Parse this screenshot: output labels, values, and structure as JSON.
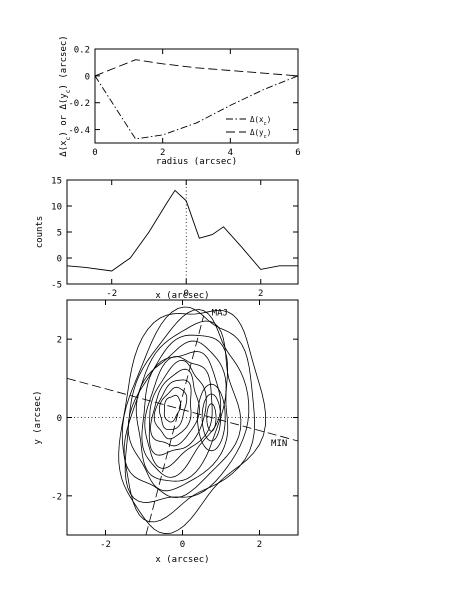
{
  "chart_data": [
    {
      "type": "line",
      "xlabel": "radius (arcsec)",
      "ylabel": "Δ(x_c) or Δ(y_c) (arcsec)",
      "ylabel_parts": [
        "Δ(x",
        "c",
        ") or Δ(y",
        "c",
        ") (arcsec)"
      ],
      "xlim": [
        0,
        6
      ],
      "ylim": [
        -0.5,
        0.2
      ],
      "xticks": [
        0,
        2,
        4,
        6
      ],
      "yticks": [
        -0.4,
        -0.2,
        0,
        0.2
      ],
      "x_tick_labels": [
        "0",
        "2",
        "4",
        "6"
      ],
      "y_tick_labels": [
        "-0.4",
        "-0.2",
        "0",
        "0.2"
      ],
      "legend_position": "lower-right",
      "series": [
        {
          "name": "Δ(x_c)",
          "name_parts": [
            "Δ(x",
            "c",
            ")"
          ],
          "dash": "dash-dot",
          "x": [
            0,
            1.2,
            2,
            3,
            4,
            5,
            6
          ],
          "y": [
            0,
            -0.47,
            -0.44,
            -0.35,
            -0.22,
            -0.1,
            0
          ]
        },
        {
          "name": "Δ(y_c)",
          "name_parts": [
            "Δ(y",
            "c",
            ")"
          ],
          "dash": "long-dash",
          "x": [
            0,
            1.2,
            2,
            3,
            4,
            5,
            6
          ],
          "y": [
            0,
            0.12,
            0.09,
            0.06,
            0.04,
            0.02,
            0
          ]
        }
      ]
    },
    {
      "type": "line",
      "xlabel": "x (arcsec)",
      "ylabel": "counts",
      "xlim": [
        -3.2,
        3
      ],
      "ylim": [
        -5,
        15
      ],
      "xticks": [
        -2,
        0,
        2
      ],
      "yticks": [
        -5,
        0,
        5,
        10,
        15
      ],
      "x_tick_labels": [
        "-2",
        "0",
        "2"
      ],
      "y_tick_labels": [
        "-5",
        "0",
        "5",
        "10",
        "15"
      ],
      "vertical_reference": {
        "x": 0,
        "style": "dotted"
      },
      "series": [
        {
          "x": [
            -3.2,
            -2.7,
            -2.0,
            -1.5,
            -1.0,
            -0.5,
            -0.3,
            0.0,
            0.35,
            0.7,
            1.0,
            1.5,
            2.0,
            2.5,
            3.0
          ],
          "y": [
            -1.5,
            -1.8,
            -2.5,
            0.0,
            5.0,
            10.8,
            13.0,
            11.0,
            3.8,
            4.5,
            6.0,
            2.0,
            -2.2,
            -1.5,
            -1.5
          ]
        }
      ]
    },
    {
      "type": "contour",
      "xlabel": "x (arcsec)",
      "ylabel": "y (arcsec)",
      "xlim": [
        -3,
        3
      ],
      "ylim": [
        -3,
        3
      ],
      "xticks": [
        -2,
        0,
        2
      ],
      "yticks": [
        -2,
        0,
        2
      ],
      "x_tick_labels": [
        "-2",
        "0",
        "2"
      ],
      "y_tick_labels": [
        "-2",
        "0",
        "2"
      ],
      "contour_levels": 13,
      "peak": {
        "x": -0.3,
        "y": 0.25
      },
      "secondary_lobe": {
        "x": 0.75,
        "y": 0.0
      },
      "position_angle_deg": 15,
      "horizontal_reference": {
        "y": 0,
        "style": "dotted"
      },
      "axes_lines": [
        {
          "label": "MAJ",
          "style": "long-dash",
          "x1": -0.95,
          "y1": -3.0,
          "x2": 0.55,
          "y2": 2.6
        },
        {
          "label": "MIN",
          "style": "long-dash",
          "x1": -3.0,
          "y1": 1.0,
          "x2": 3.0,
          "y2": -0.6
        }
      ]
    }
  ]
}
